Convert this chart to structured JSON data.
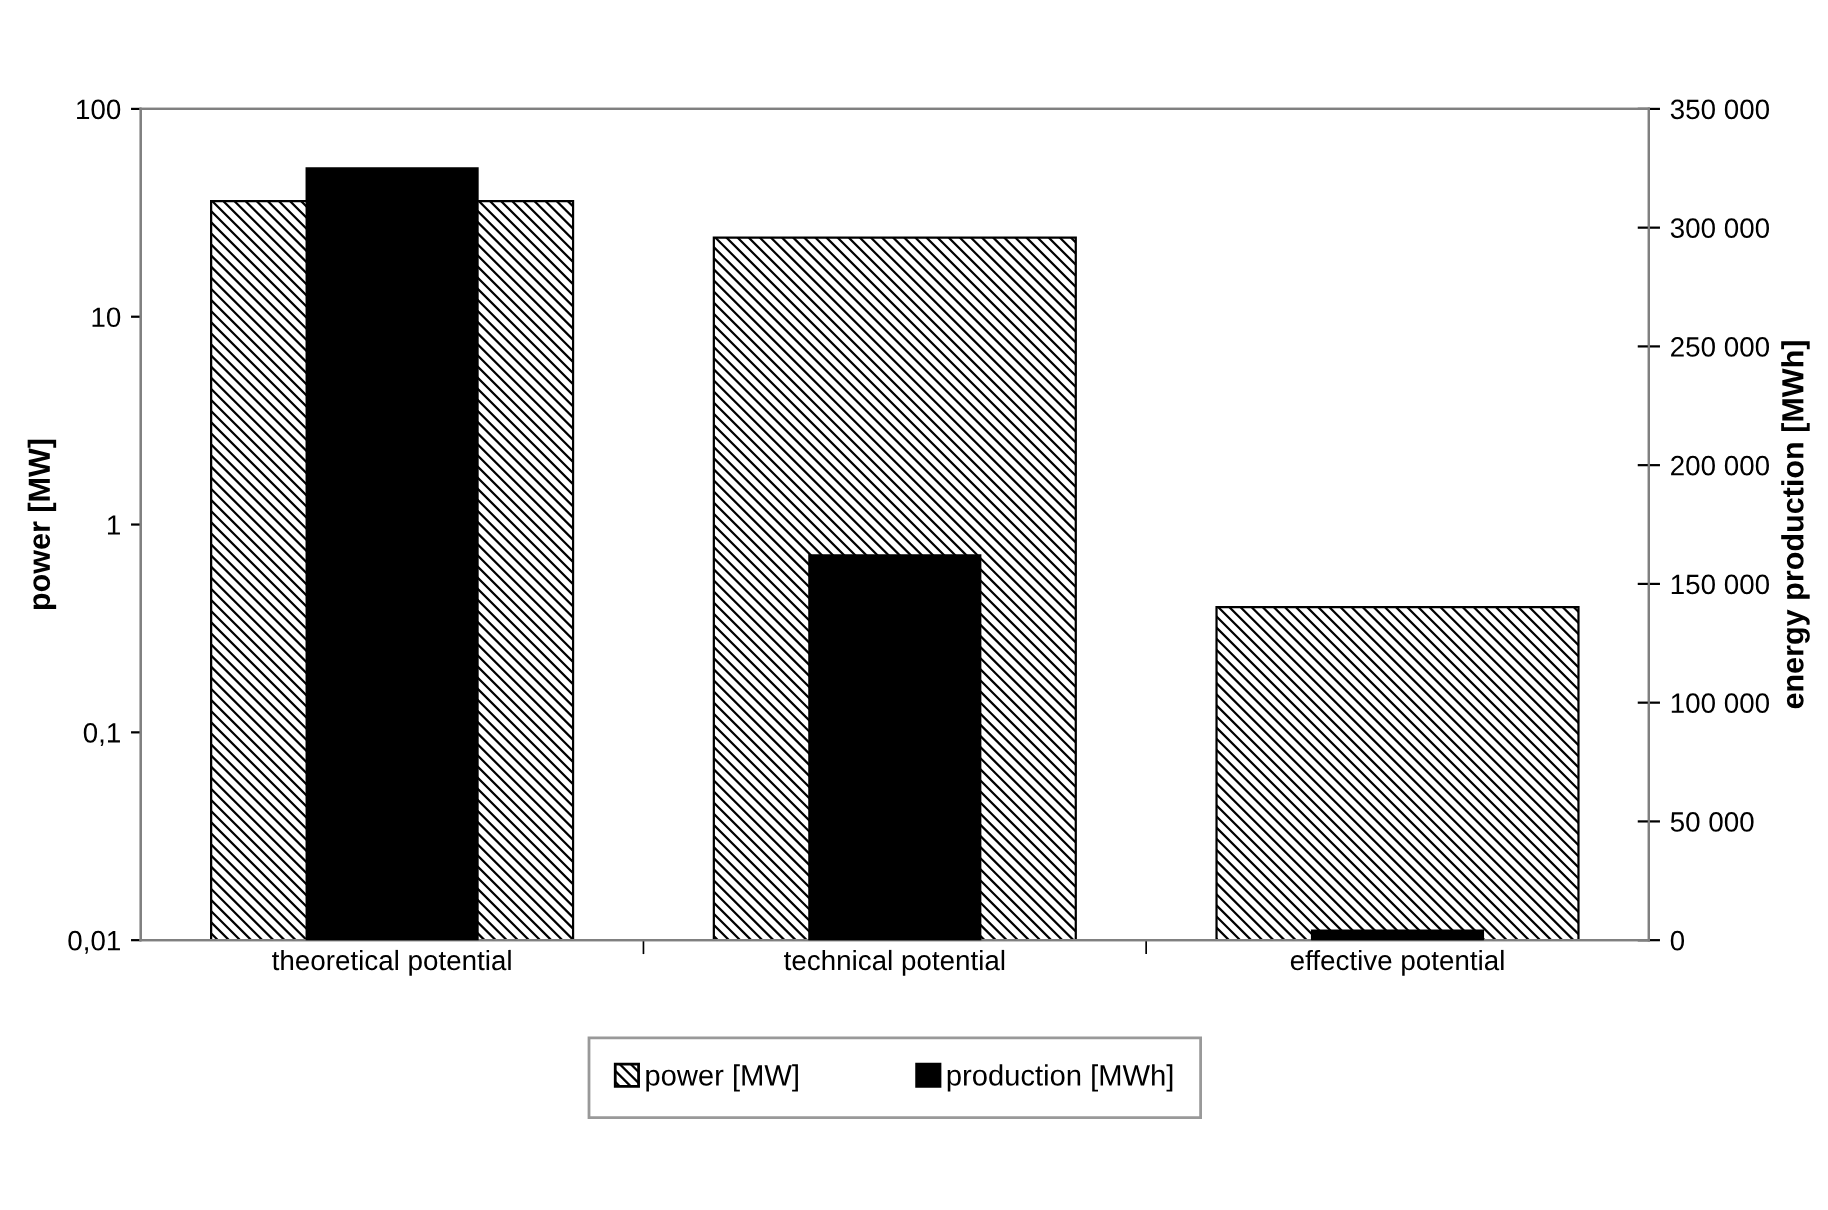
{
  "chart_data": {
    "type": "bar",
    "categories": [
      "theoretical potential",
      "technical potential",
      "effective potential"
    ],
    "ylabel": "power [MW]",
    "y2label": "energy production [MWh]",
    "log": "y",
    "ylim": [
      0.01,
      100
    ],
    "yticks": [
      {
        "value": 0.01,
        "label": "0,01"
      },
      {
        "value": 0.1,
        "label": "0,1"
      },
      1,
      10,
      100
    ],
    "y2lim": [
      0,
      350000
    ],
    "y2ticks": [
      0,
      {
        "value": 50000,
        "label": "50 000"
      },
      {
        "value": 100000,
        "label": "100 000"
      },
      {
        "value": 150000,
        "label": "150 000"
      },
      {
        "value": 200000,
        "label": "200 000"
      },
      {
        "value": 250000,
        "label": "250 000"
      },
      {
        "value": 300000,
        "label": "300 000"
      },
      {
        "value": 350000,
        "label": "350 000"
      }
    ],
    "series": [
      {
        "name": "power [MW]",
        "color": "#000000",
        "values": [
          36,
          24,
          0.4
        ]
      },
      {
        "name": "production [MWh]",
        "color": "#000000",
        "axis": "y2",
        "values": [
          325000,
          162000,
          4000
        ]
      }
    ],
    "legend": "bottom",
    "grid": false
  }
}
